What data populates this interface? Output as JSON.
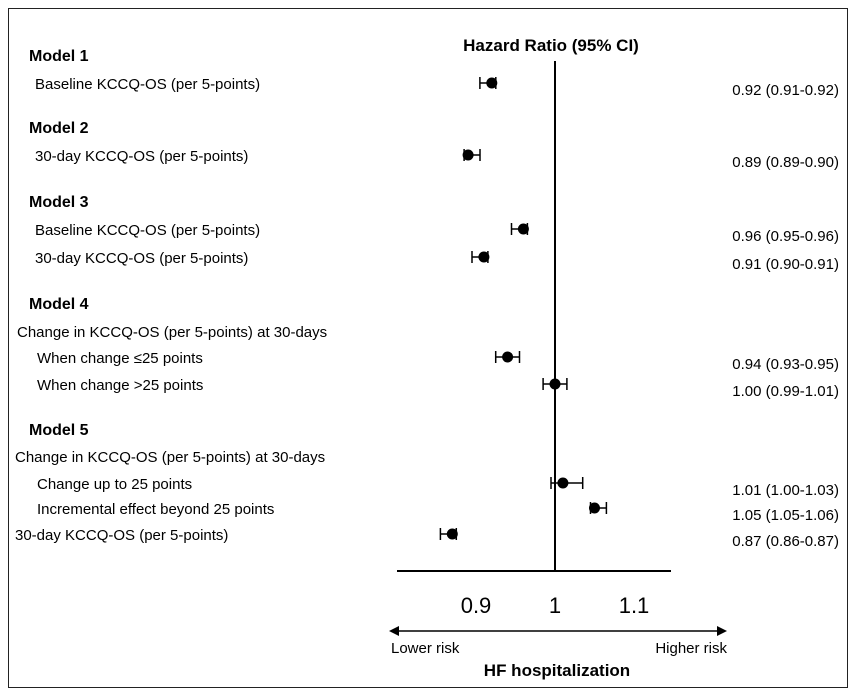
{
  "chart_data": {
    "type": "forest",
    "title": "Hazard Ratio (95% CI)",
    "xlabel": "HF hospitalization",
    "xlim": [
      0.8,
      1.15
    ],
    "reference_line": 1.0,
    "x_ticks": [
      {
        "value": 0.9,
        "label": "0.9"
      },
      {
        "value": 1.0,
        "label": "1"
      },
      {
        "value": 1.1,
        "label": "1.1"
      }
    ],
    "direction_left": "Lower risk",
    "direction_right": "Higher risk",
    "rows": [
      {
        "kind": "header",
        "label": "Model 1"
      },
      {
        "kind": "item",
        "label": "Baseline KCCQ-OS (per 5-points)",
        "indent": 0,
        "hr": 0.92,
        "lo": 0.91,
        "hi": 0.92,
        "ci_text": "0.92 (0.91-0.92)"
      },
      {
        "kind": "header",
        "label": "Model 2"
      },
      {
        "kind": "item",
        "label": "30-day KCCQ-OS (per 5-points)",
        "indent": 0,
        "hr": 0.89,
        "lo": 0.89,
        "hi": 0.9,
        "ci_text": "0.89 (0.89-0.90)"
      },
      {
        "kind": "header",
        "label": "Model 3"
      },
      {
        "kind": "item",
        "label": "Baseline KCCQ-OS (per 5-points)",
        "indent": 0,
        "hr": 0.96,
        "lo": 0.95,
        "hi": 0.96,
        "ci_text": "0.96 (0.95-0.96)"
      },
      {
        "kind": "item",
        "label": "30-day KCCQ-OS (per 5-points)",
        "indent": 0,
        "hr": 0.91,
        "lo": 0.9,
        "hi": 0.91,
        "ci_text": "0.91 (0.90-0.91)"
      },
      {
        "kind": "header",
        "label": "Model 4"
      },
      {
        "kind": "text",
        "label": "Change in KCCQ-OS (per 5-points) at 30-days"
      },
      {
        "kind": "item",
        "label": "When change ≤25 points",
        "indent": 1,
        "hr": 0.94,
        "lo": 0.93,
        "hi": 0.95,
        "ci_text": "0.94 (0.93-0.95)"
      },
      {
        "kind": "item",
        "label": "When change >25 points",
        "indent": 1,
        "hr": 1.0,
        "lo": 0.99,
        "hi": 1.01,
        "ci_text": "1.00 (0.99-1.01)"
      },
      {
        "kind": "header",
        "label": "Model 5"
      },
      {
        "kind": "text",
        "label": "Change in KCCQ-OS (per 5-points) at 30-days"
      },
      {
        "kind": "item",
        "label": "Change up to 25 points",
        "indent": 1,
        "hr": 1.01,
        "lo": 1.0,
        "hi": 1.03,
        "ci_text": "1.01 (1.00-1.03)"
      },
      {
        "kind": "item",
        "label": "Incremental effect beyond 25 points",
        "indent": 1,
        "hr": 1.05,
        "lo": 1.05,
        "hi": 1.06,
        "ci_text": "1.05 (1.05-1.06)"
      },
      {
        "kind": "item",
        "label": "30-day KCCQ-OS (per 5-points)",
        "indent": 0,
        "hr": 0.87,
        "lo": 0.86,
        "hi": 0.87,
        "ci_text": "0.87 (0.86-0.87)"
      }
    ]
  },
  "colors": {
    "ink": "#000000",
    "frame": "#222222",
    "background": "#ffffff"
  }
}
